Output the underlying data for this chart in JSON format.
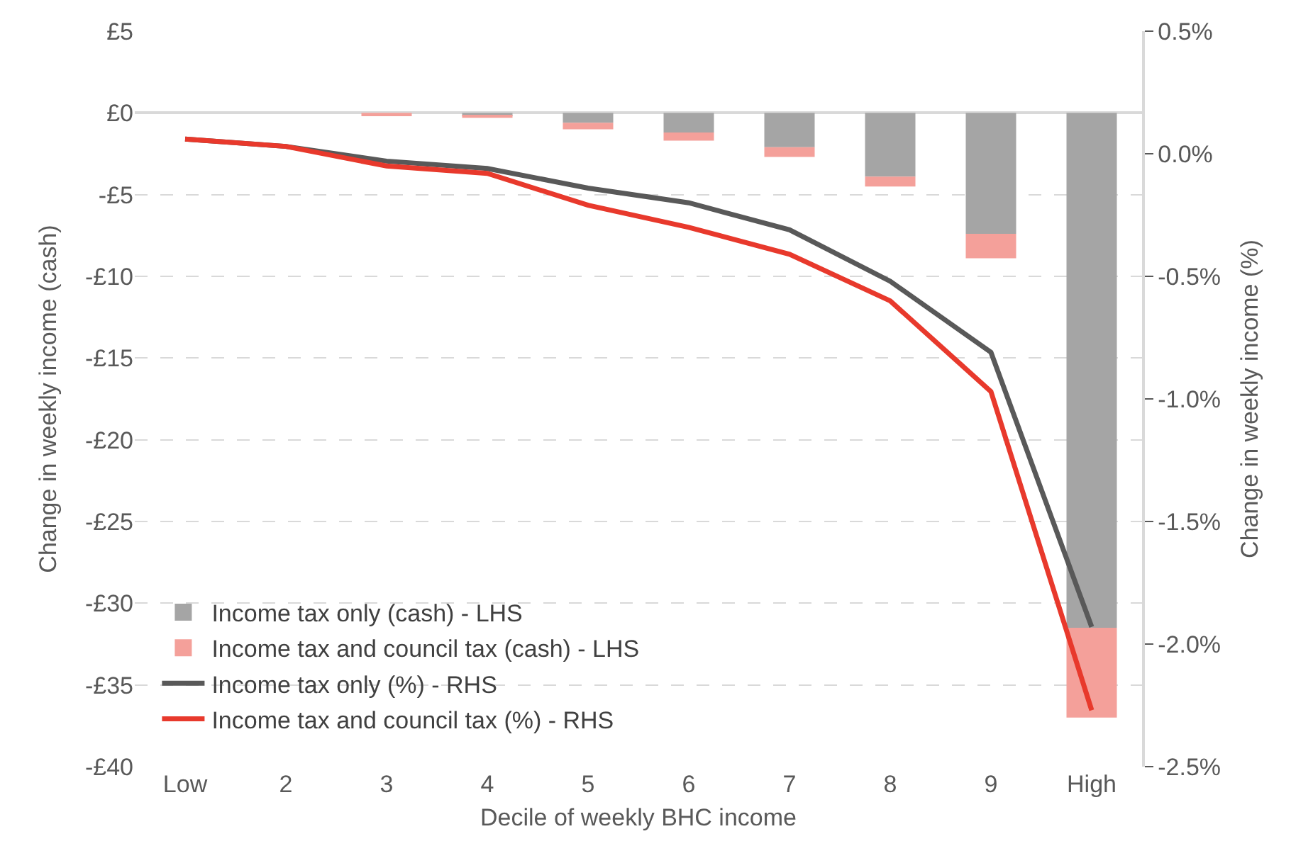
{
  "chart_data": {
    "type": "bar",
    "stacked": true,
    "xlabel": "Decile of weekly BHC income",
    "ylabel": "Change in weekly income (cash)",
    "y2label": "Change in weekly income (%)",
    "categories": [
      "Low",
      "2",
      "3",
      "4",
      "5",
      "6",
      "7",
      "8",
      "9",
      "High"
    ],
    "series": [
      {
        "name": "Income tax only (cash) - LHS",
        "color": "#a5a5a5",
        "values": [
          0,
          0,
          0,
          -0.2,
          -0.6,
          -1.2,
          -2.1,
          -3.9,
          -7.4,
          -31.5
        ]
      },
      {
        "name": "Income tax and council tax (cash) - LHS",
        "color": "#f4a09a",
        "values": [
          0,
          0,
          -0.2,
          -0.1,
          -0.4,
          -0.5,
          -0.6,
          -0.6,
          -1.5,
          -5.5
        ]
      },
      {
        "name": "Income tax only (%) - RHS",
        "type": "line",
        "axis": "y2",
        "color": "#595959",
        "values": [
          0.06,
          0.03,
          -0.03,
          -0.06,
          -0.14,
          -0.2,
          -0.31,
          -0.52,
          -0.81,
          -1.93
        ]
      },
      {
        "name": "Income tax and council tax (%) - RHS",
        "type": "line",
        "axis": "y2",
        "color": "#e8392c",
        "values": [
          0.06,
          0.03,
          -0.05,
          -0.08,
          -0.21,
          -0.3,
          -0.41,
          -0.6,
          -0.97,
          -2.27
        ]
      }
    ],
    "ylim": [
      -40,
      5
    ],
    "yticks": [
      {
        "value": 5,
        "label": "£5"
      },
      {
        "value": 0,
        "label": "£0"
      },
      {
        "value": -5,
        "label": "-£5"
      },
      {
        "value": -10,
        "label": "-£10"
      },
      {
        "value": -15,
        "label": "-£15"
      },
      {
        "value": -20,
        "label": "-£20"
      },
      {
        "value": -25,
        "label": "-£25"
      },
      {
        "value": -30,
        "label": "-£30"
      },
      {
        "value": -35,
        "label": "-£35"
      },
      {
        "value": -40,
        "label": "-£40"
      }
    ],
    "y2lim": [
      -2.5,
      0.5
    ],
    "y2ticks": [
      {
        "value": 0.5,
        "label": "0.5%"
      },
      {
        "value": 0,
        "label": "0.0%"
      },
      {
        "value": -0.5,
        "label": "-0.5%"
      },
      {
        "value": -1,
        "label": "-1.0%"
      },
      {
        "value": -1.5,
        "label": "-1.5%"
      },
      {
        "value": -2,
        "label": "-2.0%"
      },
      {
        "value": -2.5,
        "label": "-2.5%"
      }
    ],
    "grid": "y",
    "legend": "bottom left",
    "marker": "none",
    "line_style": "solid"
  }
}
